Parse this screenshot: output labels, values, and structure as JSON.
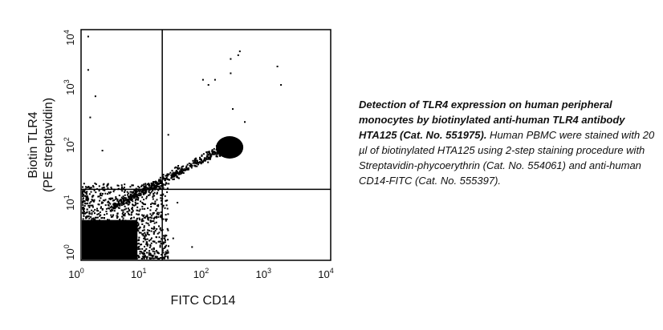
{
  "chart_data": {
    "type": "scatter",
    "title": "",
    "xlabel": "FITC CD14",
    "ylabel_lines": [
      "Biotin TLR4",
      "(PE streptavidin)"
    ],
    "xscale": "log",
    "yscale": "log",
    "xlim": [
      1,
      10000
    ],
    "ylim": [
      1,
      10000
    ],
    "x_ticks": [
      {
        "base": "10",
        "exp": "0"
      },
      {
        "base": "10",
        "exp": "1"
      },
      {
        "base": "10",
        "exp": "2"
      },
      {
        "base": "10",
        "exp": "3"
      },
      {
        "base": "10",
        "exp": "4"
      }
    ],
    "y_ticks": [
      {
        "base": "10",
        "exp": "0"
      },
      {
        "base": "10",
        "exp": "1"
      },
      {
        "base": "10",
        "exp": "2"
      },
      {
        "base": "10",
        "exp": "3"
      },
      {
        "base": "10",
        "exp": "4"
      }
    ],
    "quadrant_gates": {
      "x": 20,
      "y": 17
    },
    "grid": false,
    "point_color": "#000000",
    "populations": [
      {
        "x_range": [
          1,
          20
        ],
        "y_range": [
          1,
          17
        ],
        "density": "dense"
      },
      {
        "x_range": [
          130,
          500
        ],
        "y_range": [
          50,
          200
        ],
        "density": "dense"
      },
      {
        "x_range": [
          5,
          300
        ],
        "y_range": [
          10,
          120
        ],
        "density": "sparse"
      }
    ],
    "points": [
      [
        1.3,
        7600
      ],
      [
        1.3,
        2000
      ],
      [
        1.7,
        700
      ],
      [
        1.4,
        300
      ],
      [
        2.2,
        80
      ],
      [
        350,
        4200
      ],
      [
        330,
        3600
      ],
      [
        250,
        3100
      ],
      [
        140,
        1350
      ],
      [
        1400,
        2300
      ],
      [
        1600,
        1100
      ],
      [
        250,
        1750
      ],
      [
        270,
        420
      ],
      [
        420,
        250
      ],
      [
        110,
        1100
      ],
      [
        90,
        1350
      ],
      [
        60,
        1.7
      ],
      [
        30,
        2.4
      ],
      [
        35,
        10
      ],
      [
        25,
        150
      ]
    ]
  },
  "caption": {
    "bold": "Detection of TLR4 expression on human peripheral monocytes by biotinylated anti-human TLR4 antibody HTA125 (Cat. No. 551975).",
    "text": " Human PBMC were stained with 20 µl of biotinylated HTA125 using 2-step staining procedure with Streptavidin-phycoerythrin (Cat. No. 554061) and anti-human CD14-FITC (Cat. No. 555397)."
  }
}
